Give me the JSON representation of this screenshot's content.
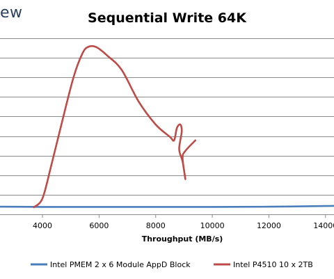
{
  "header": {
    "brand_fragment": "ew"
  },
  "chart_data": {
    "type": "line",
    "title": "Sequential Write 64K",
    "xlabel": "Throughput (MB/s)",
    "ylabel": "",
    "xlim": [
      2500,
      14300
    ],
    "ylim": [
      0,
      1
    ],
    "x_ticks": [
      4000,
      6000,
      8000,
      10000,
      12000,
      14000
    ],
    "grid": true,
    "legend": "bottom",
    "series": [
      {
        "name": "Intel PMEM 2 x 6 Module AppD Block",
        "color": "#4a7ebb",
        "points": [
          [
            2500,
            0.043
          ],
          [
            4000,
            0.042
          ],
          [
            6000,
            0.042
          ],
          [
            8000,
            0.042
          ],
          [
            10000,
            0.042
          ],
          [
            12000,
            0.043
          ],
          [
            14000,
            0.047
          ],
          [
            14300,
            0.048
          ]
        ]
      },
      {
        "name": "Intel P4510 10 x 2TB",
        "color": "#be4b48",
        "points": [
          [
            3700,
            0.04
          ],
          [
            4000,
            0.09
          ],
          [
            4300,
            0.27
          ],
          [
            4700,
            0.53
          ],
          [
            5100,
            0.78
          ],
          [
            5400,
            0.91
          ],
          [
            5600,
            0.95
          ],
          [
            5900,
            0.95
          ],
          [
            6300,
            0.9
          ],
          [
            6800,
            0.82
          ],
          [
            7400,
            0.64
          ],
          [
            8000,
            0.51
          ],
          [
            8500,
            0.44
          ],
          [
            8650,
            0.42
          ],
          [
            8750,
            0.49
          ],
          [
            8870,
            0.51
          ],
          [
            8920,
            0.47
          ],
          [
            8830,
            0.37
          ],
          [
            8950,
            0.3
          ],
          [
            9050,
            0.2
          ],
          [
            8950,
            0.32
          ],
          [
            9050,
            0.36
          ],
          [
            9400,
            0.42
          ]
        ]
      }
    ]
  }
}
